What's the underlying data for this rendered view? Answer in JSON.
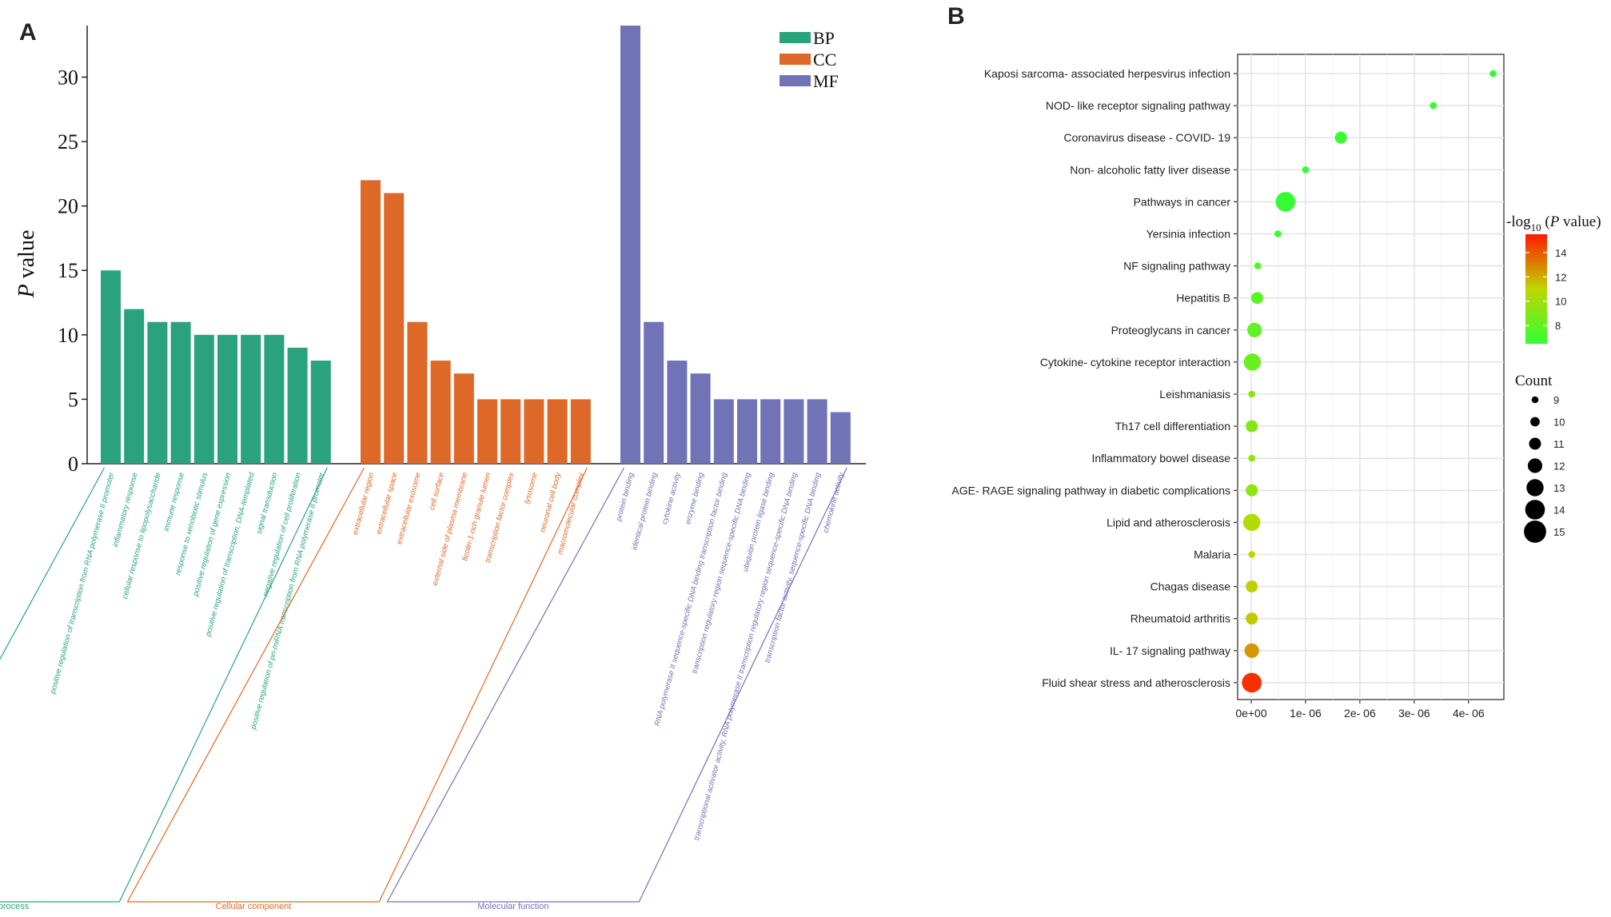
{
  "panels": {
    "a_label": "A",
    "b_label": "B"
  },
  "chart_data": [
    {
      "type": "bar",
      "panel": "A",
      "ylabel_italic": "P",
      "ylabel_rest": " value",
      "ylim": [
        0,
        34
      ],
      "yticks": [
        0,
        5,
        10,
        15,
        20,
        25,
        30
      ],
      "grid": false,
      "legend": {
        "position": "top-right",
        "entries": [
          "BP",
          "CC",
          "MF"
        ]
      },
      "colors": {
        "BP": "#2aa37d",
        "CC": "#de6828",
        "MF": "#7073b6"
      },
      "groups": [
        {
          "key": "BP",
          "name": "Biological process",
          "categories": [
            "positive regulation of transcription from RNA polymerase II promoter",
            "inflammatory response",
            "cellular response to lipopolysaccharide",
            "immune response",
            "response to xenobiotic stimulus",
            "positive regulation of gene expression",
            "positive regulation of transcription, DNA-templated",
            "signal transduction",
            "negative regulation of cell proliferation",
            "positive regulation of pri-miRNA transcription from RNA polymerase II promoter"
          ],
          "values": [
            15,
            12,
            11,
            11,
            10,
            10,
            10,
            10,
            9,
            8
          ]
        },
        {
          "key": "CC",
          "name": "Cellular component",
          "categories": [
            "extracellular region",
            "extracellular space",
            "extracellular exosome",
            "cell surface",
            "external side of plasma membrane",
            "ficolin-1-rich granule lumen",
            "transcription factor complex",
            "lysosome",
            "neuronal cell body",
            "macromolecular complex"
          ],
          "values": [
            22,
            21,
            11,
            8,
            7,
            5,
            5,
            5,
            5,
            5
          ]
        },
        {
          "key": "MF",
          "name": "Molecular function",
          "categories": [
            "protein binding",
            "identical protein binding",
            "cytokine activity",
            "enzyme binding",
            "RNA polymerase II sequence-specific DNA binding transcription factor binding",
            "transcription regulatory region sequence-specific DNA binding",
            "ubiquitin protein ligase binding",
            "transcriptional activator activity, RNA polymerase II transcription regulatory region sequence-specific DNA binding",
            "transcription factor activity, sequence-specific DNA binding",
            "chemokine activity"
          ],
          "values": [
            34,
            11,
            8,
            7,
            5,
            5,
            5,
            5,
            5,
            4
          ]
        }
      ]
    },
    {
      "type": "scatter",
      "panel": "B",
      "xlim": [
        -2.5e-07,
        4.65e-06
      ],
      "xticks": [
        0,
        1e-06,
        2e-06,
        3e-06,
        4e-06
      ],
      "xtick_labels": [
        "0e+00",
        "1e- 06",
        "2e- 06",
        "3e- 06",
        "4e- 06"
      ],
      "grid": true,
      "categories": [
        "Kaposi sarcoma- associated herpesvirus infection",
        "NOD- like receptor signaling pathway",
        "Coronavirus disease -  COVID- 19",
        "Non- alcoholic fatty liver disease",
        "Pathways in cancer",
        "Yersinia infection",
        "NF signaling pathway",
        "Hepatitis B",
        "Proteoglycans in cancer",
        "Cytokine- cytokine receptor interaction",
        "Leishmaniasis",
        "Th17 cell differentiation",
        "Inflammatory bowel disease",
        "AGE- RAGE signaling pathway in diabetic complications",
        "Lipid and atherosclerosis",
        "Malaria",
        "Chagas disease",
        "Rheumatoid arthritis",
        "IL- 17 signaling pathway",
        "Fluid shear stress and atherosclerosis"
      ],
      "x": [
        4.45e-06,
        3.35e-06,
        1.65e-06,
        1e-06,
        6.3e-07,
        4.9e-07,
        1.2e-07,
        1.1e-07,
        6e-08,
        2e-08,
        1e-08,
        1e-08,
        1e-08,
        1e-08,
        1e-08,
        1e-08,
        1e-08,
        1e-08,
        1e-08,
        1e-08
      ],
      "count": [
        9,
        9,
        11,
        9,
        14,
        9,
        9,
        11,
        12,
        13,
        9,
        11,
        9,
        11,
        13,
        9,
        11,
        11,
        12,
        14
      ],
      "neglog10p": [
        5.3,
        5.5,
        6.0,
        6.2,
        6.3,
        6.4,
        7.5,
        7.8,
        8.0,
        8.2,
        9.2,
        9.0,
        9.5,
        9.4,
        10.5,
        11.0,
        11.2,
        11.3,
        12.5,
        15.0
      ],
      "color_legend": {
        "title_prefix": "-log",
        "title_sub": "10",
        "title_italic": "P",
        "title_suffix": " value)",
        "title_open": " (",
        "ticks": [
          8,
          10,
          12,
          14
        ],
        "range": [
          6.5,
          15.5
        ],
        "low_color": "#33ff33",
        "high_color": "#ff1a00"
      },
      "size_legend": {
        "title": "Count",
        "values": [
          9,
          10,
          11,
          12,
          13,
          14,
          15
        ]
      }
    }
  ]
}
